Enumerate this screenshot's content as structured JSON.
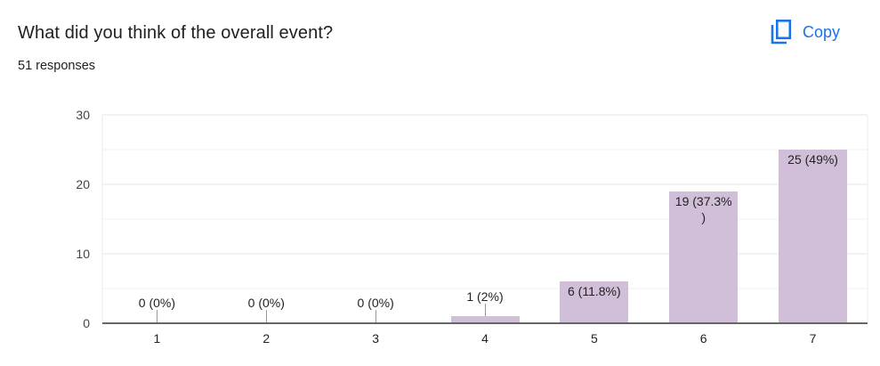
{
  "header": {
    "title": "What did you think of the overall event?",
    "responses": "51 responses",
    "copy_label": "Copy"
  },
  "icons": {
    "copy": "copy-icon"
  },
  "colors": {
    "bar": "#d1bfd9",
    "accent": "#1a73e8",
    "grid": "#ebebeb",
    "axis": "#666666"
  },
  "chart_data": {
    "type": "bar",
    "title": "What did you think of the overall event?",
    "categories": [
      "1",
      "2",
      "3",
      "4",
      "5",
      "6",
      "7"
    ],
    "values": [
      0,
      0,
      0,
      1,
      6,
      19,
      25
    ],
    "data_labels": [
      "0 (0%)",
      "0 (0%)",
      "0 (0%)",
      "1 (2%)",
      "6 (11.8%)",
      "19 (37.3%\n)",
      "25 (49%)"
    ],
    "percentages": [
      0,
      0,
      0,
      2,
      11.8,
      37.3,
      49
    ],
    "xlabel": "",
    "ylabel": "",
    "ylim": [
      0,
      30
    ],
    "yticks": [
      0,
      10,
      20,
      30
    ],
    "grid": true,
    "legend": null
  }
}
